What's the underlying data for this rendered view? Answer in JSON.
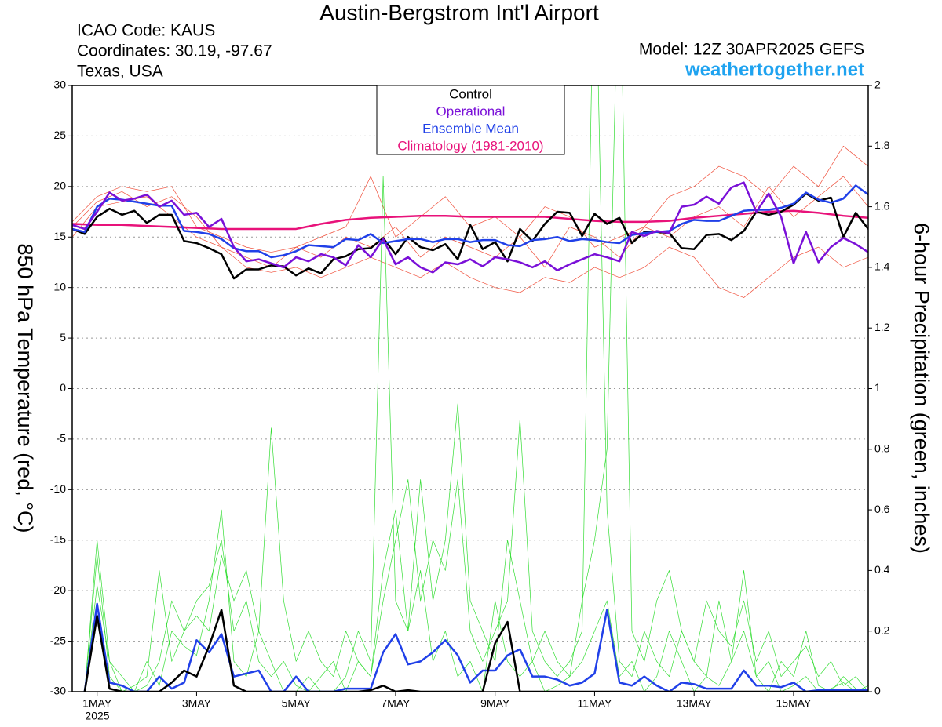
{
  "chart_data": {
    "type": "line",
    "title": "Austin-Bergstrom Int'l Airport",
    "info_left": [
      "ICAO Code: KAUS",
      "Coordinates: 30.19, -97.67",
      "Texas, USA"
    ],
    "model": "Model: 12Z 30APR2025 GEFS",
    "source": "weathertogether.net",
    "y_label": "850 hPa Temperature (red, °C)",
    "y2_label": "6-hour Precipitation (green, inches)",
    "year_label": "2025",
    "xlim": [
      -0.5,
      15.5
    ],
    "xticks": [
      {
        "value": 0,
        "label": "1MAY"
      },
      {
        "value": 2,
        "label": "3MAY"
      },
      {
        "value": 4,
        "label": "5MAY"
      },
      {
        "value": 6,
        "label": "7MAY"
      },
      {
        "value": 8,
        "label": "9MAY"
      },
      {
        "value": 10,
        "label": "11MAY"
      },
      {
        "value": 12,
        "label": "13MAY"
      },
      {
        "value": 14,
        "label": "15MAY"
      }
    ],
    "ylim": [
      -30,
      30
    ],
    "yticks": [
      -30,
      -25,
      -20,
      -15,
      -10,
      -5,
      0,
      5,
      10,
      15,
      20,
      25,
      30
    ],
    "y2lim": [
      0,
      2
    ],
    "y2ticks": [
      0,
      0.2,
      0.4,
      0.6,
      0.8,
      1,
      1.2,
      1.4,
      1.6,
      1.8,
      2
    ],
    "grid": true,
    "x": [
      -0.5,
      -0.25,
      0,
      0.25,
      0.5,
      0.75,
      1,
      1.25,
      1.5,
      1.75,
      2,
      2.25,
      2.5,
      2.75,
      3,
      3.25,
      3.5,
      3.75,
      4,
      4.25,
      4.5,
      4.75,
      5,
      5.25,
      5.5,
      5.75,
      6,
      6.25,
      6.5,
      6.75,
      7,
      7.25,
      7.5,
      7.75,
      8,
      8.25,
      8.5,
      8.75,
      9,
      9.25,
      9.5,
      9.75,
      10,
      10.25,
      10.5,
      10.75,
      11,
      11.25,
      11.5,
      11.75,
      12,
      12.25,
      12.5,
      12.75,
      13,
      13.25,
      13.5,
      13.75,
      14,
      14.25,
      14.5,
      14.75,
      15,
      15.25,
      15.5
    ],
    "series": [
      {
        "color": "#f0503c",
        "width": 0.7,
        "x": [
          -0.5,
          0,
          0.5,
          1,
          1.5,
          2,
          2.5,
          3,
          3.5,
          4,
          4.5,
          5,
          5.5,
          6,
          6.5,
          7,
          7.5,
          8,
          8.5,
          9,
          9.5,
          10,
          10.5,
          11,
          11.5,
          12,
          12.5,
          13,
          13.5,
          14,
          14.5,
          15,
          15.5
        ],
        "values": [
          16.5,
          19,
          20,
          19.5,
          20,
          16,
          15,
          14,
          13.5,
          14,
          15,
          16,
          21,
          15,
          17,
          19,
          16,
          17,
          15,
          18,
          17,
          14,
          15,
          16,
          19,
          20,
          22,
          21,
          19,
          22,
          20,
          24,
          22
        ]
      },
      {
        "color": "#f0503c",
        "width": 0.7,
        "x": [
          -0.5,
          0,
          0.5,
          1,
          1.5,
          2,
          2.5,
          3,
          3.5,
          4,
          4.5,
          5,
          5.5,
          6,
          6.5,
          7,
          7.5,
          8,
          8.5,
          9,
          9.5,
          10,
          10.5,
          11,
          11.5,
          12,
          12.5,
          13,
          13.5,
          14,
          14.5,
          15,
          15.5
        ],
        "values": [
          15,
          18,
          18.5,
          19,
          17,
          15,
          14,
          12,
          11.5,
          12,
          11,
          12,
          13,
          12,
          11,
          12.5,
          11,
          10,
          9.5,
          11,
          10.5,
          12,
          11,
          12,
          14,
          13,
          10,
          9,
          11,
          13,
          14,
          12,
          13
        ]
      },
      {
        "color": "#f0503c",
        "width": 0.7,
        "x": [
          -0.5,
          0,
          0.5,
          1,
          1.5,
          2,
          2.5,
          3,
          3.5,
          4,
          4.5,
          5,
          5.5,
          6,
          6.5,
          7,
          7.5,
          8,
          8.5,
          9,
          9.5,
          10,
          10.5,
          11,
          11.5,
          12,
          12.5,
          13,
          13.5,
          14,
          14.5,
          15,
          15.5
        ],
        "values": [
          16,
          18.5,
          19.5,
          18,
          19,
          17,
          14,
          13,
          12,
          14,
          13,
          15,
          14,
          16,
          13,
          15,
          14,
          13,
          15,
          12,
          16,
          15,
          13,
          16,
          15,
          17,
          18,
          16,
          20,
          17,
          19,
          21,
          18
        ]
      },
      {
        "color": "#33dd33",
        "width": 0.7,
        "axis": "y2",
        "values": [
          null,
          0,
          0.45,
          0.05,
          0,
          0,
          0.1,
          0.02,
          0.2,
          0.15,
          0.12,
          0.3,
          0.6,
          0.1,
          0.05,
          0.2,
          0.1,
          0,
          0,
          0.05,
          0,
          0,
          0.05,
          0.2,
          0.1,
          1.7,
          0.3,
          0.2,
          0.4,
          0.1,
          0.2,
          0.05,
          0.1,
          0,
          0.3,
          0.1,
          0.05,
          0.1,
          0,
          0.02,
          0.05,
          0.1,
          0.2,
          0.3,
          0.05,
          0.1,
          0,
          0.05,
          0.2,
          0.1,
          0,
          0.05,
          0.02,
          0.1,
          0.4,
          0.05,
          0.1,
          0,
          0.02,
          0.05,
          0,
          0.01,
          0.03,
          0,
          0.02
        ]
      },
      {
        "color": "#33dd33",
        "width": 0.7,
        "axis": "y2",
        "values": [
          null,
          0,
          0.35,
          0.1,
          0,
          0.02,
          0.05,
          0.4,
          0.1,
          0.2,
          0.3,
          0.35,
          0.5,
          0.2,
          0.3,
          0.1,
          0.05,
          0.1,
          0.02,
          0,
          0.05,
          0.1,
          0,
          0.1,
          0.05,
          0.3,
          0.5,
          0.7,
          0.3,
          0.5,
          0.4,
          0.7,
          0.2,
          0.1,
          0.2,
          0.3,
          0.9,
          0.2,
          0.1,
          0.05,
          0.1,
          0.2,
          2.6,
          0.6,
          0.1,
          0.05,
          0.2,
          0.1,
          0.05,
          0.2,
          0.1,
          0.05,
          0.3,
          0.1,
          0.2,
          0.05,
          0,
          0.1,
          0.05,
          0.2,
          0.02,
          0,
          0.05,
          0.01,
          0
        ]
      },
      {
        "color": "#33dd33",
        "width": 0.7,
        "axis": "y2",
        "values": [
          null,
          0,
          0.5,
          0.1,
          0.05,
          0,
          0.02,
          0.1,
          0.3,
          0.2,
          0.25,
          0.2,
          0.45,
          0.3,
          0.4,
          0.2,
          0.87,
          0.3,
          0.1,
          0.2,
          0.1,
          0.05,
          0.2,
          0.1,
          0.05,
          0.4,
          0.6,
          0.2,
          0.7,
          0.3,
          0.5,
          0.95,
          0.3,
          0.2,
          0.1,
          0.5,
          0.3,
          0.1,
          0.2,
          0.1,
          0.05,
          0.3,
          0.5,
          0.8,
          2.6,
          0.2,
          0.1,
          0.3,
          0.4,
          0.2,
          0.1,
          0.3,
          0.2,
          0.15,
          0.3,
          0.1,
          0.2,
          0.05,
          0.1,
          0.15,
          0.05,
          0.1,
          0.02,
          0.05,
          0
        ]
      },
      {
        "name": "Climatology (1981-2010)",
        "color": "#e8127a",
        "width": 2.5,
        "x": [
          -0.5,
          0,
          0.5,
          1,
          1.5,
          2,
          2.5,
          3,
          3.5,
          4,
          4.5,
          5,
          5.5,
          6,
          6.5,
          7,
          7.5,
          8,
          8.5,
          9,
          9.5,
          10,
          10.5,
          11,
          11.5,
          12,
          12.5,
          13,
          13.5,
          14,
          14.5,
          15,
          15.5
        ],
        "values": [
          16.3,
          16.2,
          16.2,
          16.1,
          16.0,
          15.9,
          15.8,
          15.8,
          15.8,
          15.8,
          16.3,
          16.7,
          16.9,
          17.0,
          17.1,
          17.1,
          17.0,
          17.0,
          17.0,
          17.0,
          16.8,
          16.6,
          16.5,
          16.5,
          16.6,
          16.9,
          17.1,
          17.3,
          17.5,
          17.6,
          17.4,
          17.1,
          16.9
        ]
      },
      {
        "color": "#2040e8",
        "width": 2.5,
        "axis": "y2",
        "values": [
          null,
          0,
          0.29,
          0.03,
          0.02,
          0,
          0,
          0.05,
          0.01,
          0.03,
          0.17,
          0.13,
          0.19,
          0.05,
          0.06,
          0.07,
          0,
          0,
          0.05,
          0,
          0,
          0,
          0.01,
          0.01,
          0.01,
          0.13,
          0.19,
          0.09,
          0.1,
          0.13,
          0.17,
          0.12,
          0.03,
          0.07,
          0.07,
          0.12,
          0.14,
          0.05,
          0.05,
          0.04,
          0.02,
          0.03,
          0.06,
          0.27,
          0.03,
          0.02,
          0.05,
          0.02,
          0,
          0.03,
          0.025,
          0.01,
          0.01,
          0.01,
          0.07,
          0.02,
          0.02,
          0.015,
          0.03,
          0,
          0.005,
          0.005,
          0.005,
          0.005,
          0.005
        ]
      },
      {
        "color": "#000000",
        "width": 2.5,
        "axis": "y2",
        "values": [
          null,
          0,
          0.25,
          0.01,
          0,
          0,
          0,
          0,
          0.03,
          0.07,
          0.05,
          0.15,
          0.27,
          0.02,
          0,
          0,
          0,
          0,
          0,
          0,
          0,
          0,
          0,
          0,
          0.005,
          0.02,
          0,
          0.005,
          0,
          0,
          0,
          0,
          0,
          0,
          0.16,
          0.23,
          0,
          0,
          0,
          0,
          0,
          0,
          0,
          0,
          0,
          0,
          0,
          0,
          0,
          0,
          0,
          0,
          0,
          0,
          0,
          0,
          0,
          0,
          0,
          0,
          0,
          0,
          0,
          0,
          0
        ]
      },
      {
        "name": "Control",
        "color": "#000000",
        "width": 2.5,
        "values": [
          15.8,
          15.3,
          17.0,
          17.8,
          17.2,
          17.6,
          16.4,
          17.2,
          17.2,
          14.6,
          14.4,
          13.9,
          13.3,
          10.9,
          11.8,
          11.8,
          12.2,
          12.1,
          11.2,
          11.9,
          11.4,
          12.8,
          13.1,
          13.8,
          13.9,
          14.9,
          13.3,
          15.0,
          14.0,
          13.7,
          14.3,
          12.8,
          16.2,
          13.8,
          14.5,
          12.6,
          15.8,
          14.6,
          16.3,
          17.5,
          17.4,
          15.1,
          17.3,
          16.3,
          16.9,
          14.4,
          15.5,
          15.5,
          15.4,
          13.9,
          13.8,
          15.2,
          15.3,
          14.7,
          15.6,
          17.5,
          17.2,
          17.5,
          18.2,
          19.3,
          18.6,
          18.9,
          15.0,
          17.4,
          15.8
        ]
      },
      {
        "name": "Ensemble Mean",
        "color": "#2040e8",
        "width": 2.5,
        "values": [
          15.8,
          15.5,
          18.0,
          18.8,
          18.7,
          18.5,
          18.3,
          18.1,
          18.1,
          15.6,
          15.5,
          15.3,
          14.8,
          13.9,
          13.6,
          13.6,
          13.0,
          13.2,
          13.6,
          14.2,
          14.1,
          14.0,
          14.8,
          14.7,
          15.3,
          14.4,
          14.6,
          14.8,
          14.8,
          14.5,
          14.8,
          14.8,
          14.5,
          14.7,
          14.7,
          14.2,
          14.1,
          14.7,
          14.8,
          15.0,
          14.6,
          14.8,
          14.7,
          14.5,
          14.4,
          15.2,
          15.4,
          15.5,
          15.6,
          16.3,
          16.7,
          16.6,
          16.6,
          17.1,
          17.6,
          17.7,
          17.7,
          17.9,
          18.3,
          19.4,
          18.7,
          18.4,
          18.8,
          20.1,
          19.2
        ]
      },
      {
        "name": "Operational",
        "color": "#7a10d8",
        "width": 2.5,
        "values": [
          16.2,
          15.8,
          17.5,
          19.4,
          18.6,
          18.8,
          19.2,
          18.0,
          18.6,
          17.2,
          17.4,
          16.0,
          16.8,
          14.0,
          12.6,
          12.8,
          12.4,
          12.0,
          13.0,
          12.6,
          13.3,
          13.0,
          12.2,
          14.2,
          13.0,
          14.8,
          12.3,
          13.0,
          12.0,
          11.5,
          12.5,
          12.3,
          12.8,
          12.1,
          13.0,
          12.8,
          12.5,
          12.0,
          12.6,
          11.7,
          12.3,
          12.8,
          13.3,
          13.0,
          12.6,
          15.5,
          15.1,
          15.6,
          15.4,
          18.0,
          18.2,
          19.0,
          18.3,
          19.9,
          20.4,
          17.5,
          19.3,
          17.0,
          12.4,
          15.5,
          12.5,
          14.0,
          14.9,
          14.3,
          13.5
        ]
      }
    ],
    "legend_order": [
      9,
      11,
      10,
      6
    ]
  }
}
